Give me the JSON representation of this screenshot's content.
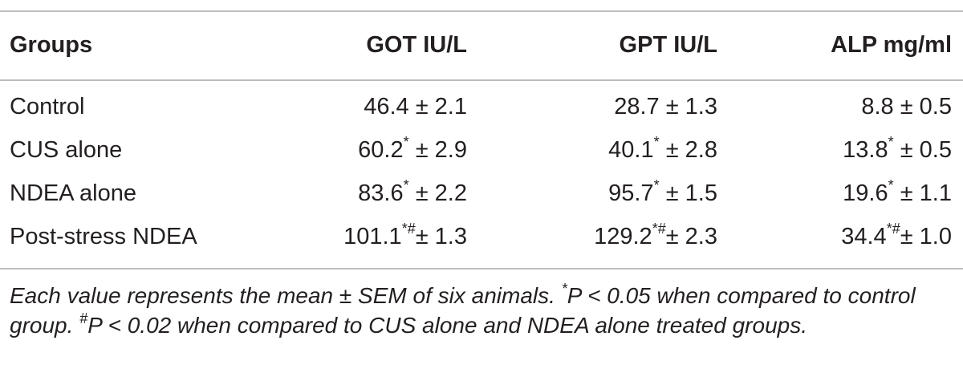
{
  "table": {
    "headers": [
      "Groups",
      "GOT IU/L",
      "GPT IU/L",
      "ALP mg/ml"
    ],
    "rows": [
      {
        "group": "Control",
        "got_value": "46.4",
        "got_mark": "",
        "got_sem": "± 2.1",
        "gpt_value": "28.7",
        "gpt_mark": "",
        "gpt_sem": "± 1.3",
        "alp_value": "8.8",
        "alp_mark": "",
        "alp_sem": "± 0.5"
      },
      {
        "group": "CUS alone",
        "got_value": "60.2",
        "got_mark": "*",
        "got_sem": " ± 2.9",
        "gpt_value": "40.1",
        "gpt_mark": "*",
        "gpt_sem": " ± 2.8",
        "alp_value": "13.8",
        "alp_mark": "*",
        "alp_sem": " ± 0.5"
      },
      {
        "group": "NDEA alone",
        "got_value": "83.6",
        "got_mark": "*",
        "got_sem": " ± 2.2",
        "gpt_value": "95.7",
        "gpt_mark": "*",
        "gpt_sem": " ± 1.5",
        "alp_value": "19.6",
        "alp_mark": "*",
        "alp_sem": " ± 1.1"
      },
      {
        "group": "Post-stress NDEA",
        "got_value": "101.1",
        "got_mark": "*#",
        "got_sem": "± 1.3",
        "gpt_value": "129.2",
        "gpt_mark": "*#",
        "gpt_sem": "± 2.3",
        "alp_value": "34.4",
        "alp_mark": "*#",
        "alp_sem": "± 1.0"
      }
    ]
  },
  "footnote": {
    "part1": "Each value represents the mean ± SEM of six animals. ",
    "mark1": "*",
    "part2": "P < 0.05 when compared to control group. ",
    "mark2": "#",
    "part3": "P < 0.02 when compared to CUS alone and NDEA alone treated groups."
  }
}
